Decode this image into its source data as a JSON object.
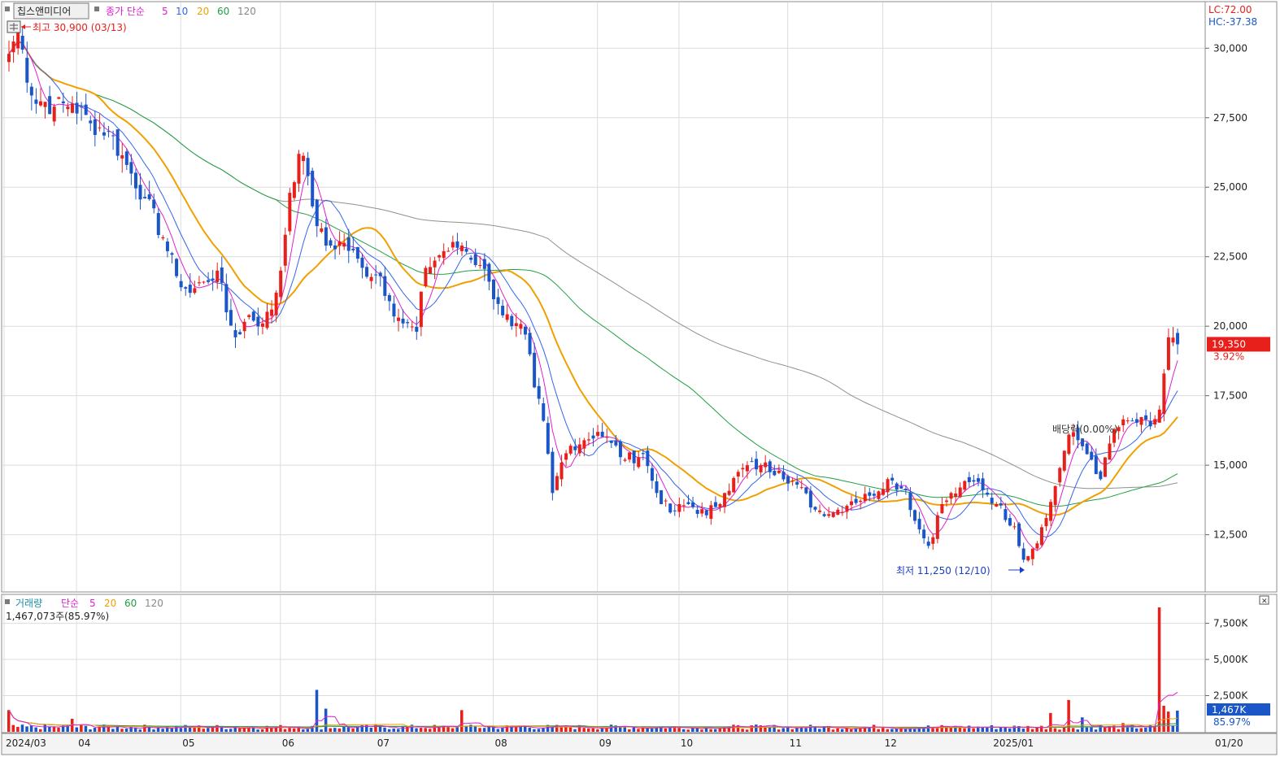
{
  "header": {
    "stock_name": "칩스앤미디어",
    "price_ma_label": "종가 단순",
    "ma_periods": [
      "5",
      "10",
      "20",
      "60",
      "120"
    ],
    "ma_colors": [
      "#e020d0",
      "#3366ee",
      "#f0a000",
      "#20a040",
      "#888888"
    ]
  },
  "annotations": {
    "high": "최고 30,900 (03/13)",
    "low": "최저 11,250 (12/10)",
    "dividend": "배당락(0.00%)"
  },
  "right_info": {
    "lc": "LC:72.00",
    "hc": "HC:-37.38"
  },
  "current": {
    "price": "19,350",
    "change": "3.92%",
    "volume": "1,467K",
    "volume_pct": "85.97%"
  },
  "volume_panel": {
    "title": "거래량",
    "ma_label": "단순",
    "ma_periods": [
      "5",
      "20",
      "60",
      "120"
    ],
    "summary": "1,467,073주(85.97%)"
  },
  "x_axis": {
    "labels": [
      "2024/03",
      "04",
      "05",
      "06",
      "07",
      "08",
      "09",
      "10",
      "11",
      "12",
      "2025/01"
    ],
    "end_label": "01/20"
  },
  "colors": {
    "up": "#e8201c",
    "down": "#1a56c8",
    "grid": "#dcdcdc"
  },
  "chart_data": {
    "type": "candlestick",
    "price_axis": {
      "min": 10500,
      "max": 31500,
      "ticks": [
        "12,500",
        "15,000",
        "17,500",
        "20,000",
        "22,500",
        "25,000",
        "27,500",
        "30,000"
      ]
    },
    "volume_axis": {
      "min": 0,
      "max": 9500,
      "unit": "K",
      "ticks": [
        "2,500K",
        "5,000K",
        "7,500K"
      ]
    },
    "price_anchors": [
      [
        0,
        29800
      ],
      [
        2,
        30700
      ],
      [
        5,
        28300
      ],
      [
        10,
        27900
      ],
      [
        14,
        28000
      ],
      [
        18,
        27300
      ],
      [
        22,
        27000
      ],
      [
        26,
        25800
      ],
      [
        30,
        24600
      ],
      [
        34,
        23200
      ],
      [
        37,
        21800
      ],
      [
        40,
        21200
      ],
      [
        43,
        21600
      ],
      [
        46,
        22000
      ],
      [
        48,
        20500
      ],
      [
        50,
        19600
      ],
      [
        53,
        20400
      ],
      [
        56,
        20100
      ],
      [
        58,
        20600
      ],
      [
        60,
        22000
      ],
      [
        62,
        24800
      ],
      [
        64,
        26200
      ],
      [
        66,
        25400
      ],
      [
        68,
        23600
      ],
      [
        70,
        22900
      ],
      [
        74,
        23000
      ],
      [
        78,
        22100
      ],
      [
        82,
        21800
      ],
      [
        84,
        20900
      ],
      [
        87,
        20100
      ],
      [
        90,
        19800
      ],
      [
        92,
        22100
      ],
      [
        96,
        22700
      ],
      [
        100,
        22900
      ],
      [
        104,
        22200
      ],
      [
        106,
        21600
      ],
      [
        108,
        20800
      ],
      [
        111,
        20000
      ],
      [
        114,
        19700
      ],
      [
        116,
        17800
      ],
      [
        118,
        16600
      ],
      [
        120,
        14000
      ],
      [
        122,
        15100
      ],
      [
        124,
        15700
      ],
      [
        127,
        15900
      ],
      [
        130,
        16200
      ],
      [
        133,
        15800
      ],
      [
        136,
        15200
      ],
      [
        140,
        15400
      ],
      [
        143,
        14000
      ],
      [
        146,
        13300
      ],
      [
        150,
        13600
      ],
      [
        154,
        13200
      ],
      [
        158,
        14000
      ],
      [
        162,
        14900
      ],
      [
        166,
        15000
      ],
      [
        170,
        14800
      ],
      [
        174,
        14300
      ],
      [
        178,
        13400
      ],
      [
        182,
        13300
      ],
      [
        186,
        13700
      ],
      [
        190,
        13900
      ],
      [
        194,
        14500
      ],
      [
        198,
        14100
      ],
      [
        200,
        13000
      ],
      [
        203,
        12100
      ],
      [
        206,
        13600
      ],
      [
        210,
        14200
      ],
      [
        214,
        14400
      ],
      [
        218,
        13600
      ],
      [
        222,
        12800
      ],
      [
        224,
        11600
      ],
      [
        226,
        12000
      ],
      [
        229,
        13100
      ],
      [
        232,
        14900
      ],
      [
        234,
        16100
      ],
      [
        236,
        15900
      ],
      [
        239,
        15200
      ],
      [
        241,
        14500
      ],
      [
        244,
        16300
      ],
      [
        248,
        16600
      ],
      [
        252,
        16400
      ],
      [
        254,
        17000
      ],
      [
        256,
        19600
      ],
      [
        258,
        19350
      ]
    ],
    "volume_events": [
      [
        0,
        1500
      ],
      [
        14,
        900
      ],
      [
        68,
        2900
      ],
      [
        70,
        1600
      ],
      [
        100,
        1500
      ],
      [
        230,
        1300
      ],
      [
        234,
        2200
      ],
      [
        237,
        1000
      ],
      [
        246,
        600
      ],
      [
        254,
        8600
      ],
      [
        255,
        1800
      ],
      [
        256,
        1400
      ],
      [
        258,
        1467
      ]
    ],
    "date_ticks": [
      0,
      16,
      39,
      61,
      82,
      108,
      131,
      149,
      173,
      194,
      218
    ],
    "date_labels": [
      "2024/03",
      "04",
      "05",
      "06",
      "07",
      "08",
      "09",
      "10",
      "11",
      "12",
      "2025/01"
    ],
    "last_close": 19350,
    "last_volume": 1467
  }
}
